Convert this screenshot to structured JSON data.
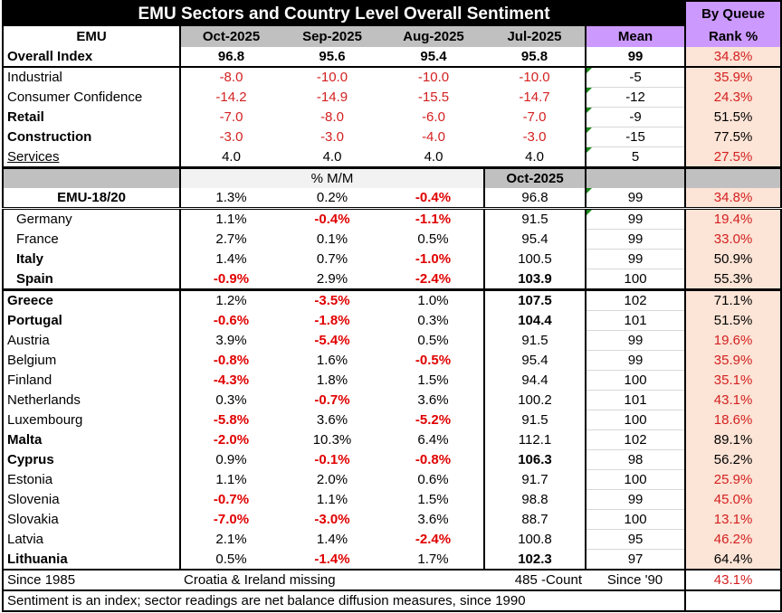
{
  "title": "EMU Sectors and Country Level Overall Sentiment",
  "rank_header_top": "By Queue",
  "header": {
    "label": "EMU",
    "months": [
      "Oct-2025",
      "Sep-2025",
      "Aug-2025",
      "Jul-2025"
    ],
    "mean": "Mean",
    "rank": "Rank %"
  },
  "sectors": [
    {
      "label": "Overall Index",
      "bold": true,
      "underline": false,
      "values": [
        "96.8",
        "95.6",
        "95.4",
        "95.8"
      ],
      "mean": "99",
      "rank": "34.8%"
    },
    {
      "label": "Industrial",
      "bold": false,
      "underline": false,
      "values": [
        "-8.0",
        "-10.0",
        "-10.0",
        "-10.0"
      ],
      "mean": "-5",
      "rank": "35.9%"
    },
    {
      "label": "Consumer Confidence",
      "bold": false,
      "underline": false,
      "values": [
        "-14.2",
        "-14.9",
        "-15.5",
        "-14.7"
      ],
      "mean": "-12",
      "rank": "24.3%"
    },
    {
      "label": "Retail",
      "bold": true,
      "underline": false,
      "values": [
        "-7.0",
        "-8.0",
        "-6.0",
        "-7.0"
      ],
      "mean": "-9",
      "rank": "51.5%"
    },
    {
      "label": "Construction",
      "bold": true,
      "underline": false,
      "values": [
        "-3.0",
        "-3.0",
        "-4.0",
        "-3.0"
      ],
      "mean": "-15",
      "rank": "77.5%"
    },
    {
      "label": "Services",
      "bold": false,
      "underline": true,
      "values": [
        "4.0",
        "4.0",
        "4.0",
        "4.0"
      ],
      "mean": "5",
      "rank": "27.5%"
    }
  ],
  "section_header": {
    "mm": "% M/M",
    "month": "Oct-2025"
  },
  "emu_row": {
    "label": "EMU-18/20",
    "mm": [
      "1.3%",
      "0.2%",
      "-0.4%"
    ],
    "oct": "96.8",
    "mean": "99",
    "rank": "34.8%"
  },
  "big4": [
    {
      "label": "Germany",
      "bold": false,
      "mm": [
        "1.1%",
        "-0.4%",
        "-1.1%"
      ],
      "oct": "91.5",
      "oct_bold": false,
      "mean": "99",
      "rank": "19.4%"
    },
    {
      "label": "France",
      "bold": false,
      "mm": [
        "2.7%",
        "0.1%",
        "0.5%"
      ],
      "oct": "95.4",
      "oct_bold": false,
      "mean": "99",
      "rank": "33.0%"
    },
    {
      "label": "Italy",
      "bold": true,
      "mm": [
        "1.4%",
        "0.7%",
        "-1.0%"
      ],
      "oct": "100.5",
      "oct_bold": false,
      "mean": "99",
      "rank": "50.9%"
    },
    {
      "label": "Spain",
      "bold": true,
      "mm": [
        "-0.9%",
        "2.9%",
        "-2.4%"
      ],
      "oct": "103.9",
      "oct_bold": true,
      "mean": "100",
      "rank": "55.3%"
    }
  ],
  "others": [
    {
      "label": "Greece",
      "bold": true,
      "mm": [
        "1.2%",
        "-3.5%",
        "1.0%"
      ],
      "oct": "107.5",
      "oct_bold": true,
      "mean": "102",
      "rank": "71.1%"
    },
    {
      "label": "Portugal",
      "bold": true,
      "mm": [
        "-0.6%",
        "-1.8%",
        "0.3%"
      ],
      "oct": "104.4",
      "oct_bold": true,
      "mean": "101",
      "rank": "51.5%"
    },
    {
      "label": "Austria",
      "bold": false,
      "mm": [
        "3.9%",
        "-5.4%",
        "0.5%"
      ],
      "oct": "91.5",
      "oct_bold": false,
      "mean": "99",
      "rank": "19.6%"
    },
    {
      "label": "Belgium",
      "bold": false,
      "mm": [
        "-0.8%",
        "1.6%",
        "-0.5%"
      ],
      "oct": "95.4",
      "oct_bold": false,
      "mean": "99",
      "rank": "35.9%"
    },
    {
      "label": "Finland",
      "bold": false,
      "mm": [
        "-4.3%",
        "1.8%",
        "1.5%"
      ],
      "oct": "94.4",
      "oct_bold": false,
      "mean": "100",
      "rank": "35.1%"
    },
    {
      "label": "Netherlands",
      "bold": false,
      "mm": [
        "0.3%",
        "-0.7%",
        "3.6%"
      ],
      "oct": "100.2",
      "oct_bold": false,
      "mean": "101",
      "rank": "43.1%"
    },
    {
      "label": "Luxembourg",
      "bold": false,
      "mm": [
        "-5.8%",
        "3.6%",
        "-5.2%"
      ],
      "oct": "91.5",
      "oct_bold": false,
      "mean": "100",
      "rank": "18.6%"
    },
    {
      "label": "Malta",
      "bold": true,
      "mm": [
        "-2.0%",
        "10.3%",
        "6.4%"
      ],
      "oct": "112.1",
      "oct_bold": false,
      "mean": "102",
      "rank": "89.1%"
    },
    {
      "label": "Cyprus",
      "bold": true,
      "mm": [
        "0.9%",
        "-0.1%",
        "-0.8%"
      ],
      "oct": "106.3",
      "oct_bold": true,
      "mean": "98",
      "rank": "56.2%"
    },
    {
      "label": "Estonia",
      "bold": false,
      "mm": [
        "1.1%",
        "2.0%",
        "0.6%"
      ],
      "oct": "91.7",
      "oct_bold": false,
      "mean": "100",
      "rank": "25.9%"
    },
    {
      "label": "Slovenia",
      "bold": false,
      "mm": [
        "-0.7%",
        "1.1%",
        "1.5%"
      ],
      "oct": "98.8",
      "oct_bold": false,
      "mean": "99",
      "rank": "45.0%"
    },
    {
      "label": "Slovakia",
      "bold": false,
      "mm": [
        "-7.0%",
        "-3.0%",
        "3.6%"
      ],
      "oct": "88.7",
      "oct_bold": false,
      "mean": "100",
      "rank": "13.1%"
    },
    {
      "label": "Latvia",
      "bold": false,
      "mm": [
        "2.1%",
        "1.4%",
        "-2.4%"
      ],
      "oct": "100.8",
      "oct_bold": false,
      "mean": "95",
      "rank": "46.2%"
    },
    {
      "label": "Lithuania",
      "bold": true,
      "mm": [
        "0.5%",
        "-1.4%",
        "1.7%"
      ],
      "oct": "102.3",
      "oct_bold": true,
      "mean": "97",
      "rank": "64.4%"
    }
  ],
  "footer": {
    "since": "Since 1985",
    "missing": "Croatia & Ireland missing",
    "count": "485 -Count",
    "since_mean": "Since '90",
    "rank": "43.1%",
    "note": "Sentiment is an index; sector readings are net balance diffusion measures, since 1990"
  }
}
